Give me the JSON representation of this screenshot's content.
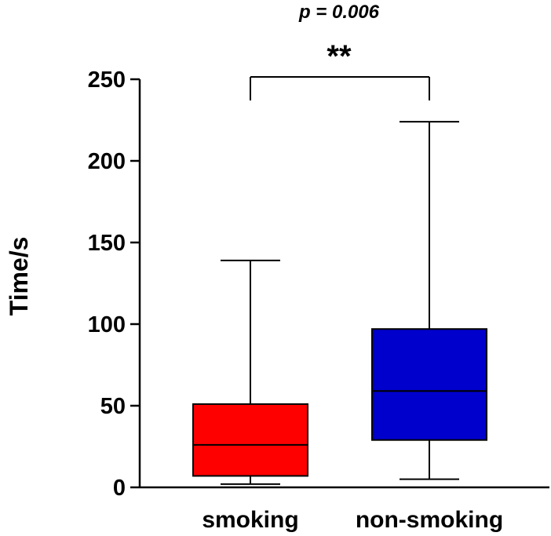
{
  "chart_data": {
    "type": "boxplot",
    "xlabel": "",
    "ylabel": "Time/s",
    "ylim": [
      0,
      250
    ],
    "yticks": [
      0,
      50,
      100,
      150,
      200,
      250
    ],
    "grid": false,
    "legend": "none",
    "categories": [
      "smoking",
      "non-smoking"
    ],
    "series": [
      {
        "category": "smoking",
        "min": 2,
        "q1": 7,
        "median": 26,
        "q3": 51,
        "max": 139,
        "color": "#ff0000"
      },
      {
        "category": "non-smoking",
        "min": 5,
        "q1": 29,
        "median": 59,
        "q3": 97,
        "max": 224,
        "color": "#0000cc"
      }
    ],
    "annotation": {
      "p_text": "p = 0.006",
      "stars": "**"
    }
  }
}
